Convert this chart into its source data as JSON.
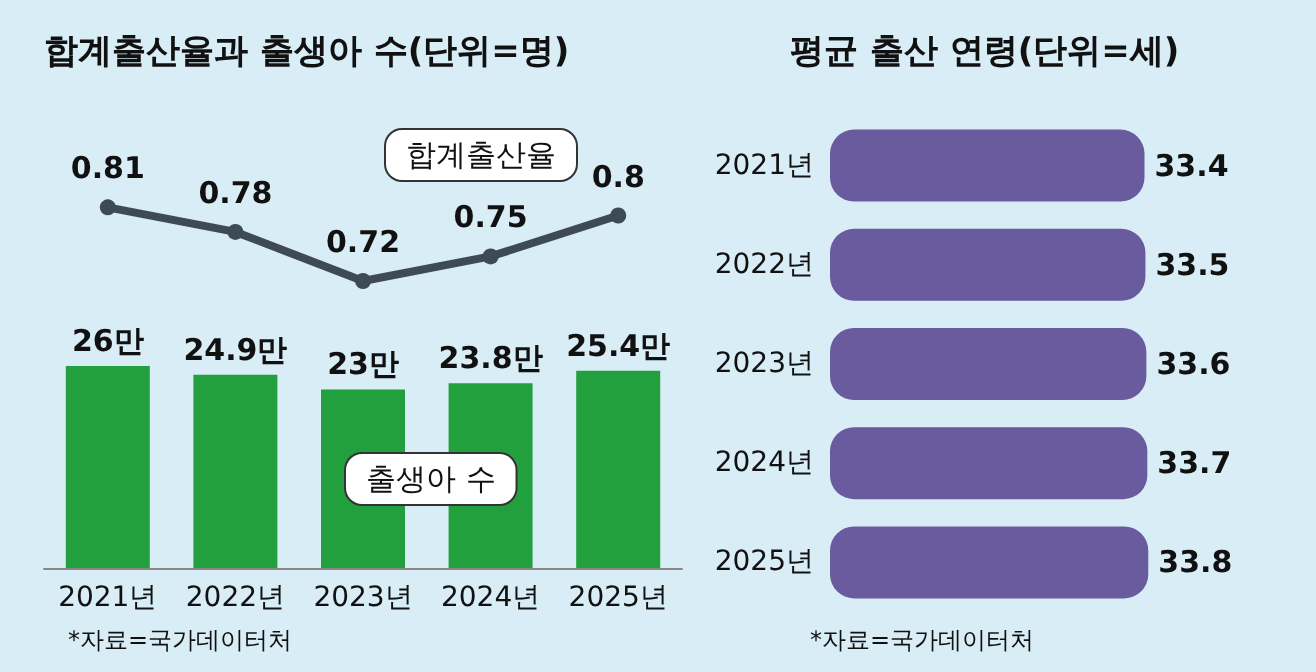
{
  "chart_data": [
    {
      "type": "line",
      "title": "합계출산율과 출생아 수(단위=명)",
      "categories": [
        null,
        null,
        null,
        null,
        null
      ],
      "series": [
        {
          "name": "합계출산율",
          "color": "#3e4a56",
          "values": [
            0.81,
            0.78,
            0.72,
            0.75,
            0.8
          ]
        }
      ],
      "marker": "circle",
      "data_labels": true,
      "tick_labels": false
    },
    {
      "type": "bar",
      "categories": [
        "2021년",
        "2022년",
        "2023년",
        "2024년",
        "2025년"
      ],
      "series": [
        {
          "name": "출생아 수",
          "color": "#23a03e",
          "values": [
            26,
            24.9,
            23,
            23.8,
            25.4
          ],
          "value_labels": [
            "26만",
            "24.9만",
            "23만",
            "23.8만",
            "25.4만"
          ]
        }
      ],
      "tick_labels": "x",
      "annotations": [
        "*자료=국가데이터처"
      ]
    },
    {
      "type": "bar",
      "title": "평균 출산 연령(단위=세)",
      "orientation": "horizontal",
      "categories": [
        "2021년",
        "2022년",
        "2023년",
        "2024년",
        "2025년"
      ],
      "series": [
        {
          "color": "#6a5a9e",
          "values": [
            33.4,
            33.5,
            33.6,
            33.7,
            33.8
          ]
        }
      ],
      "data_labels": true,
      "tick_labels": "y",
      "annotations": [
        "*자료=국가데이터처"
      ]
    }
  ]
}
